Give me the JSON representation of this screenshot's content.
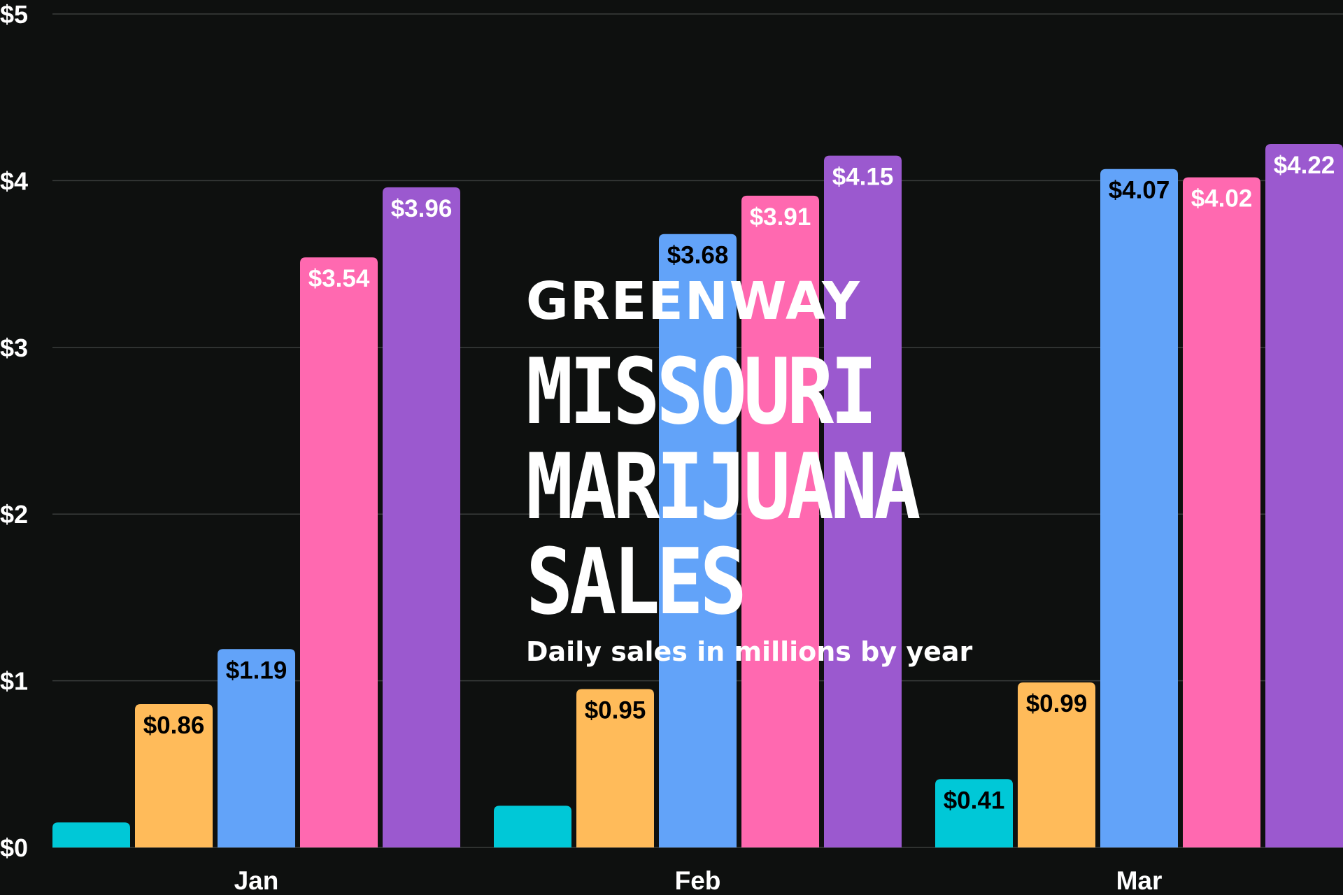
{
  "brand": "GREENWAY",
  "title_lines": [
    "MISSOURI",
    "MARIJUANA",
    "SALES"
  ],
  "subtitle": "Daily sales in millions by year",
  "chart_data": {
    "type": "bar",
    "title": "MISSOURI MARIJUANA SALES",
    "subtitle": "Daily sales in millions by year",
    "xlabel": "",
    "ylabel": "",
    "categories": [
      "Jan",
      "Feb",
      "Mar"
    ],
    "ylim": [
      0,
      5
    ],
    "yticks": [
      0,
      1,
      2,
      3,
      4,
      5
    ],
    "ytick_labels": [
      "$0",
      "$1",
      "$2",
      "$3",
      "$4",
      "$5"
    ],
    "grid": true,
    "legend": "none",
    "series": [
      {
        "color": "#00c8d7",
        "values": [
          0.15,
          0.25,
          0.41
        ],
        "labels": [
          "",
          "",
          "$0.41"
        ],
        "label_color": "#000000"
      },
      {
        "color": "#ffbb5a",
        "values": [
          0.86,
          0.95,
          0.99
        ],
        "labels": [
          "$0.86",
          "$0.95",
          "$0.99"
        ],
        "label_color": "#000000"
      },
      {
        "color": "#62a3f9",
        "values": [
          1.19,
          3.68,
          4.07
        ],
        "labels": [
          "$1.19",
          "$3.68",
          "$4.07"
        ],
        "label_color": "#000000"
      },
      {
        "color": "#ff69b0",
        "values": [
          3.54,
          3.91,
          4.02
        ],
        "labels": [
          "$3.54",
          "$3.91",
          "$4.02"
        ],
        "label_color": "#ffffff"
      },
      {
        "color": "#9b59cf",
        "values": [
          3.96,
          4.15,
          4.22
        ],
        "labels": [
          "$3.96",
          "$4.15",
          "$4.22"
        ],
        "label_color": "#ffffff"
      }
    ]
  }
}
